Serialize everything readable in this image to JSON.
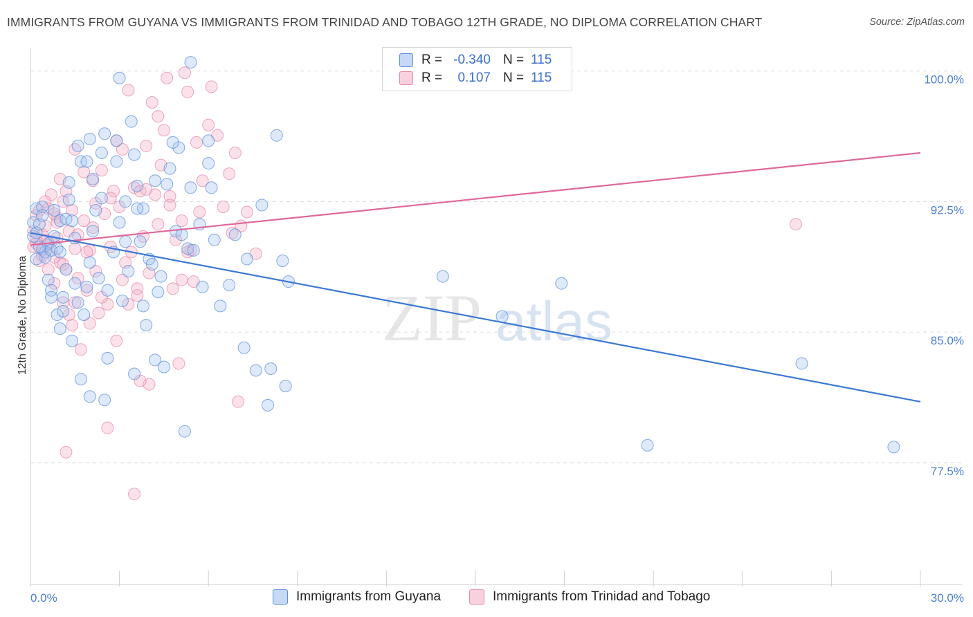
{
  "header": {
    "title": "IMMIGRANTS FROM GUYANA VS IMMIGRANTS FROM TRINIDAD AND TOBAGO 12TH GRADE, NO DIPLOMA CORRELATION CHART",
    "source": "Source: ZipAtlas.com"
  },
  "watermark": {
    "zip": "ZIP",
    "atlas": "atlas"
  },
  "legend": {
    "r_label": "R =",
    "n_label": "N =",
    "rows": [
      {
        "r": "-0.340",
        "n": "115",
        "color": "#a9c6f0"
      },
      {
        "r": "0.107",
        "n": "115",
        "color": "#f4b3c9"
      }
    ]
  },
  "colors": {
    "blue_fill": "#a9c6f0",
    "blue_stroke": "#5b8fdc",
    "blue_line": "#3b78d4",
    "pink_fill": "#f4b3c9",
    "pink_stroke": "#e58aa8",
    "pink_line": "#e0679a",
    "tick_text": "#4a7fd4",
    "grid": "#dcdcdc"
  },
  "chart_data": {
    "type": "scatter",
    "title": "IMMIGRANTS FROM GUYANA VS IMMIGRANTS FROM TRINIDAD AND TOBAGO 12TH GRADE, NO DIPLOMA CORRELATION CHART",
    "xlabel": "",
    "ylabel": "12th Grade, No Diploma",
    "xlim": [
      0,
      30
    ],
    "ylim": [
      70.5,
      101.3
    ],
    "x_tick_labels": [
      "0.0%",
      "30.0%"
    ],
    "y_ticks": [
      77.5,
      85.0,
      92.5,
      100.0
    ],
    "y_tick_labels": [
      "77.5%",
      "85.0%",
      "92.5%",
      "100.0%"
    ],
    "grid": "horizontal dashed",
    "legend_position": "bottom",
    "series": [
      {
        "name": "Immigrants from Guyana",
        "trend": {
          "x": [
            0,
            30
          ],
          "y": [
            90.7,
            81.0
          ]
        },
        "points": [
          [
            0.1,
            91.3
          ],
          [
            0.1,
            90.5
          ],
          [
            0.2,
            92.1
          ],
          [
            0.2,
            90.7
          ],
          [
            0.3,
            91.2
          ],
          [
            0.4,
            92.2
          ],
          [
            0.4,
            89.8
          ],
          [
            0.5,
            89.6
          ],
          [
            0.5,
            89.3
          ],
          [
            0.6,
            90.1
          ],
          [
            0.6,
            88.0
          ],
          [
            0.7,
            89.7
          ],
          [
            0.7,
            87.4
          ],
          [
            0.7,
            87.0
          ],
          [
            0.8,
            92.0
          ],
          [
            0.8,
            90.5
          ],
          [
            0.9,
            89.8
          ],
          [
            0.9,
            86.0
          ],
          [
            1.0,
            89.6
          ],
          [
            1.0,
            91.4
          ],
          [
            1.1,
            87.0
          ],
          [
            1.1,
            86.2
          ],
          [
            1.2,
            91.5
          ],
          [
            1.2,
            88.6
          ],
          [
            1.3,
            93.6
          ],
          [
            1.3,
            92.6
          ],
          [
            1.4,
            84.5
          ],
          [
            1.4,
            91.4
          ],
          [
            1.5,
            87.8
          ],
          [
            1.5,
            90.4
          ],
          [
            1.6,
            95.7
          ],
          [
            1.7,
            94.8
          ],
          [
            1.7,
            82.3
          ],
          [
            1.8,
            86.0
          ],
          [
            1.9,
            94.8
          ],
          [
            2.0,
            96.1
          ],
          [
            2.0,
            89.0
          ],
          [
            2.0,
            81.3
          ],
          [
            2.1,
            90.8
          ],
          [
            2.2,
            92.0
          ],
          [
            2.3,
            88.1
          ],
          [
            2.4,
            92.7
          ],
          [
            2.5,
            81.1
          ],
          [
            2.5,
            96.4
          ],
          [
            2.6,
            87.4
          ],
          [
            2.6,
            83.5
          ],
          [
            2.8,
            89.6
          ],
          [
            2.9,
            96.0
          ],
          [
            2.9,
            94.8
          ],
          [
            3.0,
            91.3
          ],
          [
            3.1,
            86.8
          ],
          [
            3.2,
            92.5
          ],
          [
            3.2,
            90.2
          ],
          [
            3.3,
            88.5
          ],
          [
            3.4,
            97.1
          ],
          [
            3.5,
            95.2
          ],
          [
            3.5,
            82.6
          ],
          [
            3.6,
            93.4
          ],
          [
            3.7,
            90.2
          ],
          [
            3.8,
            92.1
          ],
          [
            3.8,
            86.5
          ],
          [
            4.0,
            89.2
          ],
          [
            4.1,
            88.9
          ],
          [
            4.2,
            93.7
          ],
          [
            4.2,
            83.4
          ],
          [
            4.3,
            87.3
          ],
          [
            4.4,
            88.2
          ],
          [
            4.5,
            83.0
          ],
          [
            4.6,
            93.5
          ],
          [
            4.7,
            94.4
          ],
          [
            4.9,
            90.8
          ],
          [
            5.0,
            95.6
          ],
          [
            5.1,
            90.6
          ],
          [
            5.2,
            79.3
          ],
          [
            5.3,
            89.8
          ],
          [
            5.4,
            93.3
          ],
          [
            5.4,
            100.5
          ],
          [
            5.5,
            89.7
          ],
          [
            5.8,
            87.6
          ],
          [
            6.0,
            96.0
          ],
          [
            6.0,
            94.7
          ],
          [
            6.2,
            90.3
          ],
          [
            6.4,
            86.5
          ],
          [
            6.7,
            87.7
          ],
          [
            6.9,
            90.6
          ],
          [
            7.2,
            84.1
          ],
          [
            7.3,
            89.2
          ],
          [
            7.6,
            82.8
          ],
          [
            7.8,
            92.3
          ],
          [
            8.0,
            80.8
          ],
          [
            8.1,
            82.9
          ],
          [
            8.3,
            96.3
          ],
          [
            8.5,
            89.1
          ],
          [
            8.6,
            81.9
          ],
          [
            8.7,
            87.9
          ],
          [
            13.9,
            88.2
          ],
          [
            15.9,
            85.9
          ],
          [
            17.9,
            87.8
          ],
          [
            20.8,
            78.5
          ],
          [
            26.0,
            83.2
          ],
          [
            29.1,
            78.4
          ],
          [
            2.4,
            95.3
          ],
          [
            1.9,
            87.6
          ],
          [
            0.3,
            89.9
          ],
          [
            0.4,
            91.7
          ],
          [
            3.6,
            92.1
          ],
          [
            2.1,
            93.8
          ],
          [
            4.8,
            95.9
          ],
          [
            6.1,
            93.3
          ],
          [
            3.9,
            85.4
          ],
          [
            1.0,
            85.2
          ],
          [
            5.7,
            91.2
          ],
          [
            0.2,
            89.2
          ],
          [
            1.6,
            86.7
          ],
          [
            3.0,
            99.6
          ]
        ]
      },
      {
        "name": "Immigrants from Trinidad and Tobago",
        "trend": {
          "x": [
            0,
            30
          ],
          "y": [
            90.0,
            95.3
          ]
        },
        "points": [
          [
            0.1,
            90.8
          ],
          [
            0.1,
            89.9
          ],
          [
            0.2,
            91.7
          ],
          [
            0.2,
            90.1
          ],
          [
            0.3,
            92.0
          ],
          [
            0.3,
            89.1
          ],
          [
            0.4,
            90.6
          ],
          [
            0.4,
            89.7
          ],
          [
            0.5,
            91.1
          ],
          [
            0.5,
            90.3
          ],
          [
            0.6,
            88.6
          ],
          [
            0.6,
            90.0
          ],
          [
            0.7,
            92.9
          ],
          [
            0.7,
            90.2
          ],
          [
            0.8,
            89.3
          ],
          [
            0.8,
            87.8
          ],
          [
            0.9,
            91.6
          ],
          [
            0.9,
            90.4
          ],
          [
            1.0,
            93.8
          ],
          [
            1.0,
            89.0
          ],
          [
            1.1,
            92.5
          ],
          [
            1.1,
            86.7
          ],
          [
            1.2,
            93.1
          ],
          [
            1.2,
            88.6
          ],
          [
            1.3,
            90.8
          ],
          [
            1.3,
            86.0
          ],
          [
            1.4,
            92.0
          ],
          [
            1.4,
            85.4
          ],
          [
            1.5,
            95.5
          ],
          [
            1.5,
            89.8
          ],
          [
            1.6,
            88.1
          ],
          [
            1.7,
            84.0
          ],
          [
            1.8,
            94.2
          ],
          [
            1.8,
            91.4
          ],
          [
            1.9,
            87.4
          ],
          [
            2.0,
            85.5
          ],
          [
            2.0,
            89.7
          ],
          [
            2.1,
            93.7
          ],
          [
            2.2,
            92.4
          ],
          [
            2.3,
            86.1
          ],
          [
            2.4,
            94.3
          ],
          [
            2.5,
            91.8
          ],
          [
            2.6,
            86.6
          ],
          [
            2.6,
            79.5
          ],
          [
            2.7,
            89.9
          ],
          [
            2.8,
            93.1
          ],
          [
            2.9,
            84.5
          ],
          [
            3.0,
            92.2
          ],
          [
            3.1,
            95.5
          ],
          [
            3.2,
            89.0
          ],
          [
            3.3,
            86.6
          ],
          [
            3.3,
            98.9
          ],
          [
            3.4,
            89.6
          ],
          [
            3.5,
            75.7
          ],
          [
            3.5,
            93.3
          ],
          [
            3.6,
            87.5
          ],
          [
            3.7,
            93.1
          ],
          [
            3.8,
            90.5
          ],
          [
            3.9,
            95.7
          ],
          [
            4.0,
            82.0
          ],
          [
            4.0,
            88.4
          ],
          [
            4.1,
            98.2
          ],
          [
            4.2,
            92.9
          ],
          [
            4.3,
            91.2
          ],
          [
            4.4,
            94.6
          ],
          [
            4.5,
            96.6
          ],
          [
            4.6,
            99.6
          ],
          [
            4.7,
            92.8
          ],
          [
            4.8,
            87.5
          ],
          [
            4.9,
            90.3
          ],
          [
            5.0,
            83.2
          ],
          [
            5.1,
            91.4
          ],
          [
            5.2,
            99.9
          ],
          [
            5.3,
            98.8
          ],
          [
            5.4,
            89.7
          ],
          [
            5.6,
            95.9
          ],
          [
            5.7,
            91.9
          ],
          [
            5.8,
            93.7
          ],
          [
            6.0,
            96.9
          ],
          [
            6.1,
            99.1
          ],
          [
            6.3,
            96.3
          ],
          [
            6.5,
            92.2
          ],
          [
            6.7,
            94.1
          ],
          [
            6.9,
            95.3
          ],
          [
            7.1,
            91.1
          ],
          [
            7.3,
            91.9
          ],
          [
            7.6,
            89.5
          ],
          [
            7.0,
            81.0
          ],
          [
            1.2,
            78.1
          ],
          [
            25.8,
            91.2
          ],
          [
            0.9,
            91.3
          ],
          [
            2.1,
            91.0
          ],
          [
            3.7,
            82.2
          ],
          [
            1.9,
            89.6
          ],
          [
            0.6,
            92.1
          ],
          [
            4.3,
            97.4
          ],
          [
            2.9,
            96.0
          ],
          [
            5.5,
            87.9
          ],
          [
            0.4,
            89.4
          ],
          [
            1.6,
            90.6
          ],
          [
            2.4,
            87.0
          ],
          [
            3.1,
            88.0
          ],
          [
            4.7,
            92.3
          ],
          [
            6.8,
            90.7
          ],
          [
            0.2,
            90.4
          ],
          [
            1.5,
            86.7
          ],
          [
            2.7,
            92.7
          ],
          [
            0.8,
            91.8
          ],
          [
            3.9,
            93.2
          ],
          [
            5.1,
            88.0
          ],
          [
            0.5,
            92.5
          ],
          [
            2.2,
            88.5
          ],
          [
            1.1,
            88.9
          ],
          [
            3.6,
            87.1
          ],
          [
            5.3,
            89.6
          ]
        ]
      }
    ]
  }
}
